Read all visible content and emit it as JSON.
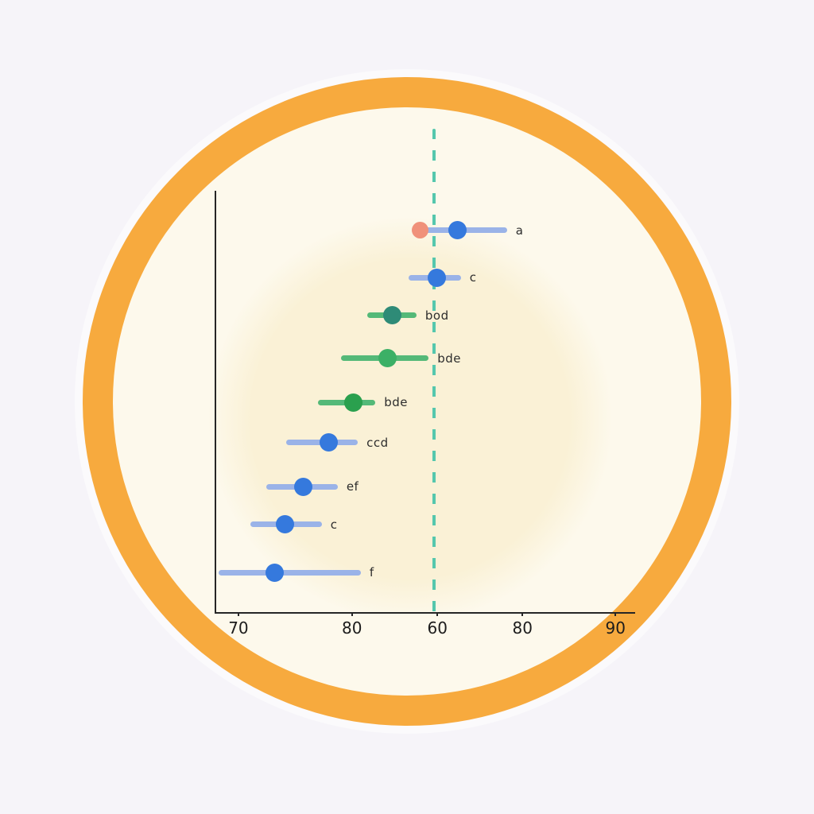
{
  "scene": {
    "description": "Horizontal dot plot with confidence-interval bars (compact letter display labels) drawn on a cream circular plate with a thick orange ring, on a pale lavender background",
    "colors": {
      "page_background": "#f6f4f9",
      "ring_orange": "#f7aa3e",
      "plate_cream": "#fdf9ec",
      "plate_inner_glow": "#faf1d6",
      "axis": "#262626",
      "reference_line_teal": "#55c7ab",
      "blue_ci_line": "#9ab3e8",
      "blue_dot": "#3579dd",
      "green_ci_line": "#54b978",
      "teal_green_dot": "#2e8b77",
      "green_dot_light": "#3cb066",
      "green_dot": "#2aa04e",
      "salmon_dot": "#f0917a"
    }
  },
  "chart_data": {
    "type": "scatter",
    "subtype": "horizontal-dot-ci-forest-plot",
    "title": "",
    "xlabel": "",
    "ylabel": "",
    "grid": false,
    "legend": false,
    "x_tick_labels": [
      "70",
      "80",
      "60",
      "80",
      "90"
    ],
    "x_tick_pct": [
      5.3,
      32.4,
      52.8,
      73.1,
      95.3
    ],
    "reference_line": {
      "style": "dashed",
      "color": "#55c7ab",
      "x_pct": 52.1
    },
    "rows": [
      {
        "label": "a",
        "y_pct": 9.4,
        "lo_pct": 48.0,
        "hi_pct": 69.4,
        "center_pct": 57.5,
        "line_color": "#9ab3e8",
        "dot_color": "#3579dd",
        "extra_dot": {
          "pct": 48.6,
          "color": "#f0917a"
        }
      },
      {
        "label": "c",
        "y_pct": 20.6,
        "lo_pct": 45.9,
        "hi_pct": 58.4,
        "center_pct": 52.6,
        "line_color": "#9ab3e8",
        "dot_color": "#3579dd"
      },
      {
        "label": "bod",
        "y_pct": 29.6,
        "lo_pct": 36.1,
        "hi_pct": 47.8,
        "center_pct": 42.1,
        "line_color": "#54b978",
        "dot_color": "#2e8b77"
      },
      {
        "label": "bde",
        "y_pct": 39.8,
        "lo_pct": 29.8,
        "hi_pct": 50.7,
        "center_pct": 40.8,
        "line_color": "#54b978",
        "dot_color": "#3cb066"
      },
      {
        "label": "bde",
        "y_pct": 50.2,
        "lo_pct": 24.3,
        "hi_pct": 38.0,
        "center_pct": 32.8,
        "line_color": "#54b978",
        "dot_color": "#2aa04e"
      },
      {
        "label": "ccd",
        "y_pct": 59.8,
        "lo_pct": 16.7,
        "hi_pct": 33.8,
        "center_pct": 26.8,
        "line_color": "#9ab3e8",
        "dot_color": "#3579dd"
      },
      {
        "label": "ef",
        "y_pct": 70.2,
        "lo_pct": 12.0,
        "hi_pct": 29.0,
        "center_pct": 20.7,
        "line_color": "#9ab3e8",
        "dot_color": "#3579dd"
      },
      {
        "label": "c",
        "y_pct": 79.2,
        "lo_pct": 8.2,
        "hi_pct": 25.2,
        "center_pct": 16.5,
        "line_color": "#9ab3e8",
        "dot_color": "#3579dd"
      },
      {
        "label": "f",
        "y_pct": 90.6,
        "lo_pct": 0.6,
        "hi_pct": 34.5,
        "center_pct": 14.0,
        "line_color": "#9ab3e8",
        "dot_color": "#3579dd"
      }
    ]
  }
}
